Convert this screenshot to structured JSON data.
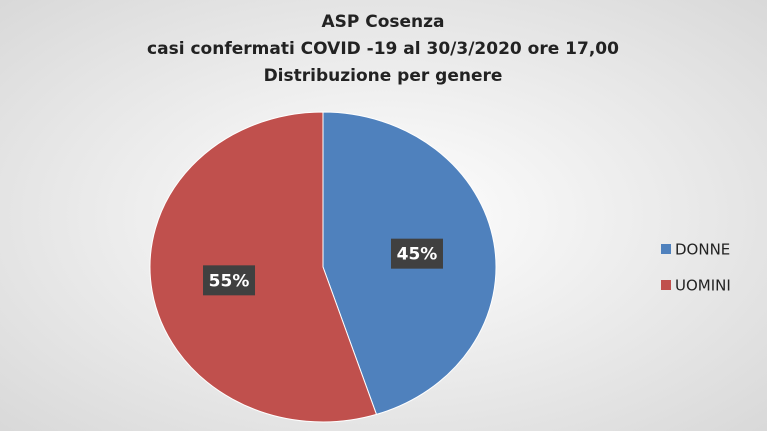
{
  "chart_data": {
    "type": "pie",
    "title": [
      "ASP Cosenza",
      "casi confermati COVID -19 al 30/3/2020 ore 17,00",
      "Distribuzione per genere"
    ],
    "categories": [
      "DONNE",
      "UOMINI"
    ],
    "values": [
      45,
      55
    ],
    "value_labels": [
      "45%",
      "55%"
    ],
    "colors": [
      "#4f81bd",
      "#c0504d"
    ],
    "legend": "right"
  }
}
